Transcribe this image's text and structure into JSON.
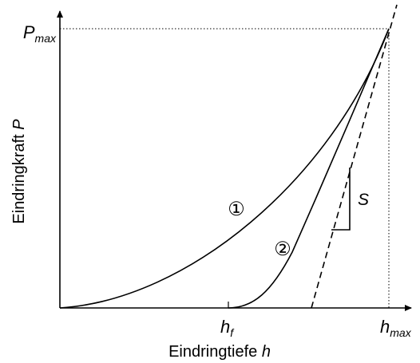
{
  "axes": {
    "y_label_main": "Eindringkraft ",
    "y_label_var": "P",
    "x_label_main": "Eindringtiefe ",
    "x_label_var": "h"
  },
  "ticks": {
    "pmax_main": "P",
    "pmax_sub": "max",
    "hmax_main": "h",
    "hmax_sub": "max",
    "hf_main": "h",
    "hf_sub": "f"
  },
  "annotations": {
    "curve1_marker": "①",
    "curve2_marker": "②",
    "stiffness_label": "S"
  },
  "colors": {
    "line": "#000000",
    "background": "#ffffff"
  }
}
